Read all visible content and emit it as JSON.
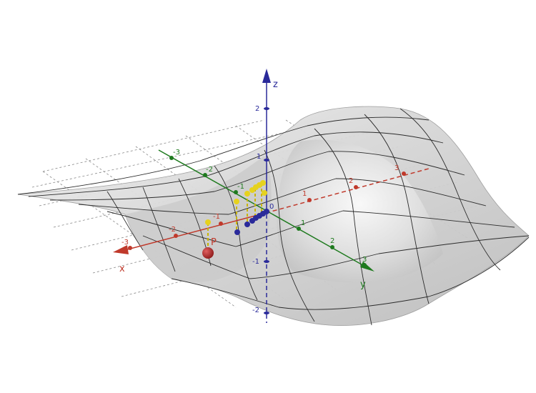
{
  "axes": {
    "x": {
      "name": "x",
      "color": "#c0392b",
      "ticks": [
        "-3",
        "-2",
        "-1",
        "1",
        "2",
        "3"
      ]
    },
    "y": {
      "name": "y",
      "color": "#1e7a1e",
      "ticks": [
        "-3",
        "-2",
        "-1",
        "1",
        "2",
        "3"
      ]
    },
    "z": {
      "name": "z",
      "color": "#2a2a9a",
      "ticks": [
        "2",
        "1",
        "-1",
        "-2"
      ]
    },
    "origin_label": "0"
  },
  "point": {
    "label": "P",
    "color": "#b22222"
  },
  "markers": {
    "yellow_points": "#e6d21e",
    "blue_points": "#2a2a9a",
    "yellow_stem": "#c8b400"
  },
  "surface": {
    "fill": "#d9d9d9",
    "mesh": "#2b2b2b"
  }
}
